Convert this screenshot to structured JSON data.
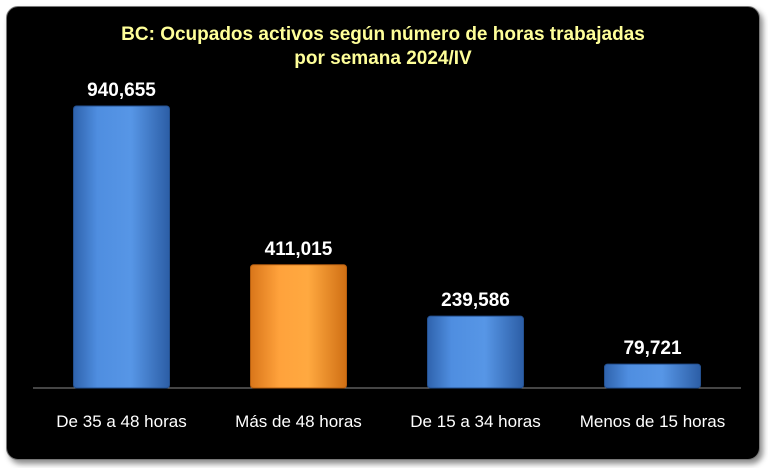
{
  "chart_data": {
    "type": "bar",
    "title_line1": "BC: Ocupados activos según número de horas trabajadas",
    "title_line2": "por semana 2024/IV",
    "categories": [
      "De 35 a 48 horas",
      "Más de 48 horas",
      "De 15 a 34 horas",
      "Menos de 15 horas"
    ],
    "values": [
      940655,
      411015,
      239586,
      79721
    ],
    "value_labels": [
      "940,655",
      "411,015",
      "239,586",
      "79,721"
    ],
    "bar_colors": [
      "#4a86d8",
      "#f39a30",
      "#4a86d8",
      "#4a86d8"
    ],
    "ylim": [
      0,
      1000000
    ],
    "grid": false,
    "legend": "none"
  }
}
